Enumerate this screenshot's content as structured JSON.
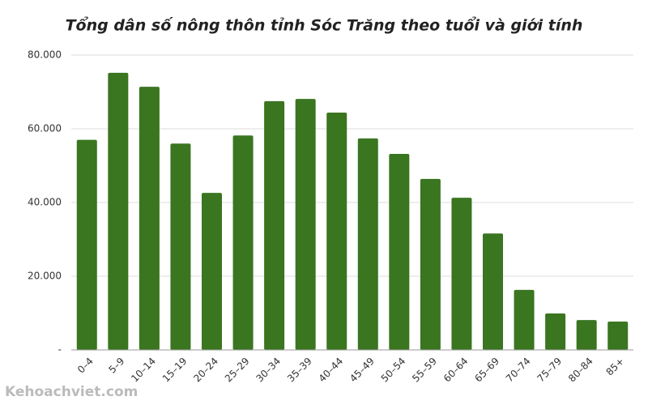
{
  "chart_data": {
    "type": "bar",
    "title": "Tổng dân số nông thôn tỉnh Sóc Trăng theo tuổi và giới tính",
    "categories": [
      "0–4",
      "5–9",
      "10–14",
      "15–19",
      "20–24",
      "25–29",
      "30–34",
      "35–39",
      "40–44",
      "45–49",
      "50–54",
      "55–59",
      "60–64",
      "65–69",
      "70–74",
      "75–79",
      "80–84",
      "85+"
    ],
    "values": [
      57000,
      75200,
      71400,
      56000,
      42600,
      58200,
      67500,
      68100,
      64400,
      57400,
      53200,
      46400,
      41300,
      31600,
      16300,
      9900,
      8100,
      7700
    ],
    "color": "#3a7520",
    "ylim": [
      0,
      80000
    ],
    "yticks": [
      {
        "value": 0,
        "label": "-"
      },
      {
        "value": 20000,
        "label": "20.000"
      },
      {
        "value": 40000,
        "label": "40.000"
      },
      {
        "value": 60000,
        "label": "60.000"
      },
      {
        "value": 80000,
        "label": "80.000"
      }
    ],
    "grid": true
  },
  "watermark": "Kehoachviet.com"
}
